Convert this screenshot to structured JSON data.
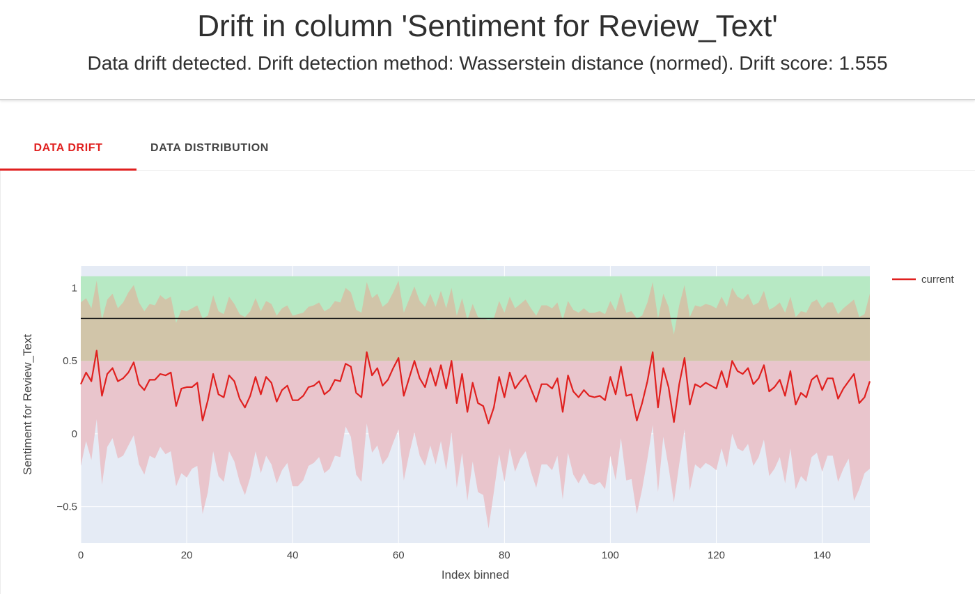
{
  "header": {
    "title": "Drift in column 'Sentiment for Review_Text'",
    "subtitle": "Data drift detected. Drift detection method: Wasserstein distance (normed). Drift score: 1.555"
  },
  "tabs": [
    {
      "label": "DATA DRIFT",
      "active": true
    },
    {
      "label": "DATA DISTRIBUTION",
      "active": false
    }
  ],
  "colors": {
    "accent": "#e0201f",
    "plot_background": "#e5ebf5",
    "current_line": "#e0201f",
    "reference_band_lower": "#e9c5cc",
    "reference_band_upper": "#b7e9c4",
    "overlap_fill": "#d1c5a9",
    "reference_mean_line": "#111111"
  },
  "chart_data": {
    "type": "line",
    "xlabel": "Index binned",
    "ylabel": "Sentiment for Review_Text",
    "xlim": [
      0,
      149
    ],
    "ylim": [
      -0.75,
      1.15
    ],
    "xticks": [
      0,
      20,
      40,
      60,
      80,
      100,
      120,
      140
    ],
    "yticks": [
      -0.5,
      0,
      0.5,
      1
    ],
    "ytick_labels": [
      "−0.5",
      "0",
      "0.5",
      "1"
    ],
    "grid": true,
    "legend_position": "top-right",
    "reference_mean": 0.79,
    "reference_band_upper": [
      0.5,
      1.08
    ],
    "series": [
      {
        "name": "current",
        "x_start": 0,
        "x_step": 1,
        "values": [
          0.34,
          0.42,
          0.36,
          0.57,
          0.26,
          0.41,
          0.45,
          0.36,
          0.38,
          0.42,
          0.49,
          0.34,
          0.3,
          0.37,
          0.37,
          0.41,
          0.4,
          0.42,
          0.19,
          0.31,
          0.32,
          0.32,
          0.35,
          0.09,
          0.23,
          0.41,
          0.27,
          0.25,
          0.4,
          0.36,
          0.24,
          0.18,
          0.26,
          0.39,
          0.27,
          0.39,
          0.35,
          0.22,
          0.3,
          0.33,
          0.23,
          0.23,
          0.26,
          0.32,
          0.33,
          0.36,
          0.27,
          0.3,
          0.37,
          0.36,
          0.48,
          0.46,
          0.28,
          0.25,
          0.56,
          0.4,
          0.45,
          0.33,
          0.37,
          0.45,
          0.52,
          0.26,
          0.38,
          0.5,
          0.38,
          0.32,
          0.45,
          0.33,
          0.47,
          0.31,
          0.5,
          0.21,
          0.41,
          0.15,
          0.35,
          0.21,
          0.19,
          0.07,
          0.18,
          0.39,
          0.25,
          0.42,
          0.31,
          0.36,
          0.4,
          0.31,
          0.22,
          0.34,
          0.34,
          0.31,
          0.38,
          0.15,
          0.4,
          0.29,
          0.25,
          0.3,
          0.26,
          0.25,
          0.26,
          0.23,
          0.39,
          0.27,
          0.46,
          0.26,
          0.27,
          0.09,
          0.21,
          0.36,
          0.56,
          0.18,
          0.45,
          0.32,
          0.08,
          0.34,
          0.52,
          0.2,
          0.34,
          0.32,
          0.35,
          0.33,
          0.31,
          0.43,
          0.32,
          0.5,
          0.43,
          0.41,
          0.45,
          0.34,
          0.38,
          0.47,
          0.29,
          0.32,
          0.37,
          0.26,
          0.43,
          0.2,
          0.28,
          0.25,
          0.37,
          0.4,
          0.3,
          0.38,
          0.38,
          0.24,
          0.31,
          0.36,
          0.41,
          0.21,
          0.25,
          0.36
        ]
      }
    ],
    "overlap_upper": [
      0.9,
      0.93,
      0.86,
      1.05,
      0.78,
      0.92,
      0.96,
      0.86,
      0.9,
      0.97,
      1.02,
      0.9,
      0.84,
      0.89,
      0.88,
      0.95,
      0.92,
      0.94,
      0.76,
      0.85,
      0.84,
      0.86,
      0.88,
      0.79,
      0.81,
      0.95,
      0.84,
      0.82,
      0.94,
      0.89,
      0.82,
      0.8,
      0.84,
      0.93,
      0.84,
      0.91,
      0.89,
      0.81,
      0.86,
      0.88,
      0.81,
      0.82,
      0.83,
      0.87,
      0.88,
      0.9,
      0.84,
      0.86,
      0.91,
      0.9,
      1.0,
      0.97,
      0.85,
      0.83,
      1.04,
      0.93,
      0.96,
      0.87,
      0.9,
      0.97,
      1.05,
      0.83,
      0.92,
      1.01,
      0.91,
      0.87,
      0.96,
      0.87,
      0.98,
      0.86,
      1.0,
      0.81,
      0.93,
      0.78,
      0.89,
      0.8,
      0.79,
      0.78,
      0.79,
      0.91,
      0.83,
      0.94,
      0.86,
      0.89,
      0.92,
      0.86,
      0.81,
      0.88,
      0.88,
      0.86,
      0.9,
      0.78,
      0.91,
      0.85,
      0.83,
      0.86,
      0.83,
      0.83,
      0.84,
      0.82,
      0.91,
      0.84,
      0.97,
      0.83,
      0.84,
      0.79,
      0.81,
      0.9,
      1.04,
      0.79,
      0.96,
      0.87,
      0.68,
      0.88,
      1.02,
      0.8,
      0.88,
      0.87,
      0.89,
      0.88,
      0.86,
      0.94,
      0.87,
      1.0,
      0.94,
      0.92,
      0.96,
      0.88,
      0.9,
      0.98,
      0.85,
      0.87,
      0.9,
      0.83,
      0.94,
      0.8,
      0.84,
      0.83,
      0.9,
      0.92,
      0.86,
      0.9,
      0.9,
      0.82,
      0.86,
      0.89,
      0.92,
      0.8,
      0.82,
      0.96
    ],
    "band_lower": [
      -0.22,
      -0.05,
      -0.18,
      0.1,
      -0.35,
      -0.09,
      -0.03,
      -0.17,
      -0.15,
      -0.08,
      -0.01,
      -0.21,
      -0.28,
      -0.15,
      -0.17,
      -0.09,
      -0.14,
      -0.12,
      -0.36,
      -0.27,
      -0.3,
      -0.24,
      -0.22,
      -0.55,
      -0.4,
      -0.12,
      -0.29,
      -0.33,
      -0.12,
      -0.19,
      -0.33,
      -0.42,
      -0.3,
      -0.12,
      -0.27,
      -0.15,
      -0.21,
      -0.34,
      -0.25,
      -0.2,
      -0.36,
      -0.36,
      -0.32,
      -0.22,
      -0.2,
      -0.16,
      -0.27,
      -0.24,
      -0.15,
      -0.16,
      0.05,
      -0.02,
      -0.28,
      -0.33,
      0.07,
      -0.13,
      -0.08,
      -0.21,
      -0.16,
      -0.06,
      0.03,
      -0.32,
      -0.14,
      0.01,
      -0.15,
      -0.22,
      -0.08,
      -0.21,
      -0.05,
      -0.25,
      0.01,
      -0.37,
      -0.13,
      -0.46,
      -0.19,
      -0.4,
      -0.42,
      -0.65,
      -0.4,
      -0.14,
      -0.33,
      -0.1,
      -0.26,
      -0.17,
      -0.12,
      -0.26,
      -0.37,
      -0.21,
      -0.21,
      -0.25,
      -0.15,
      -0.45,
      -0.13,
      -0.28,
      -0.34,
      -0.27,
      -0.34,
      -0.35,
      -0.33,
      -0.38,
      -0.15,
      -0.32,
      -0.03,
      -0.32,
      -0.31,
      -0.55,
      -0.38,
      -0.17,
      0.06,
      -0.4,
      -0.02,
      -0.23,
      -0.47,
      -0.21,
      0.03,
      -0.39,
      -0.21,
      -0.24,
      -0.2,
      -0.22,
      -0.25,
      -0.1,
      -0.23,
      0.0,
      -0.1,
      -0.12,
      -0.07,
      -0.22,
      -0.16,
      -0.04,
      -0.29,
      -0.24,
      -0.16,
      -0.34,
      -0.1,
      -0.38,
      -0.29,
      -0.33,
      -0.16,
      -0.13,
      -0.26,
      -0.15,
      -0.15,
      -0.33,
      -0.24,
      -0.17,
      -0.46,
      -0.38,
      -0.27,
      -0.24
    ]
  }
}
